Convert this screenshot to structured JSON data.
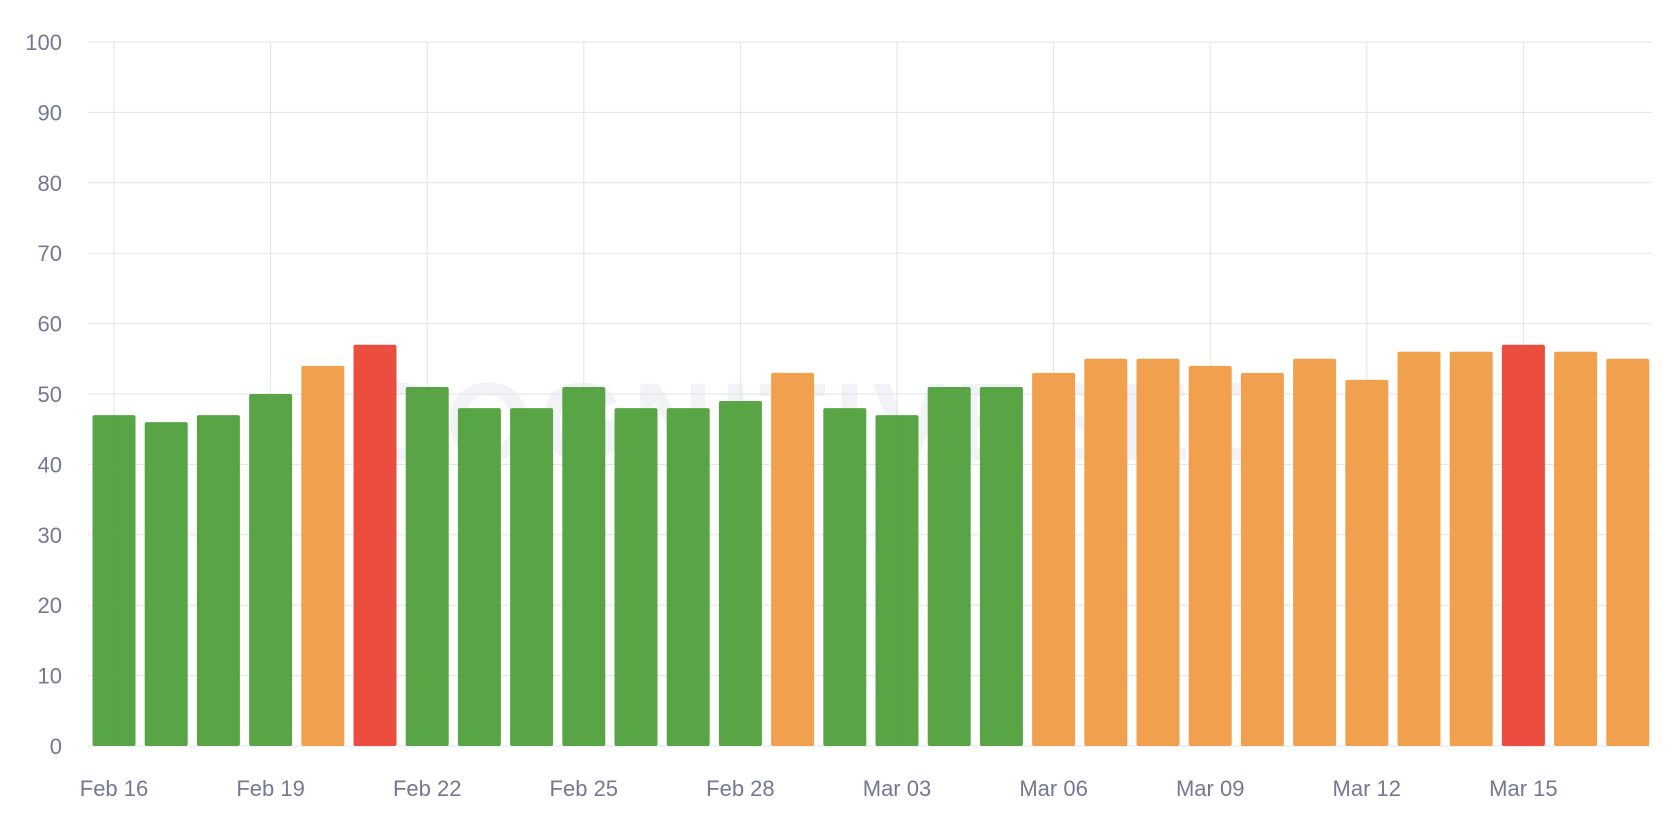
{
  "watermark": "COGNITIVESEO",
  "colors": {
    "good": "#54a23f",
    "medium": "#f19e48",
    "bad": "#ea4838",
    "grid": "#e2e3e8",
    "tick_text": "#757893"
  },
  "chart_data": {
    "type": "bar",
    "title": "",
    "xlabel": "",
    "ylabel": "",
    "ylim": [
      0,
      100
    ],
    "yticks": [
      0,
      10,
      20,
      30,
      40,
      50,
      60,
      70,
      80,
      90,
      100
    ],
    "grid": true,
    "legend": "none",
    "categories": [
      "Feb 16",
      "Feb 17",
      "Feb 18",
      "Feb 19",
      "Feb 20",
      "Feb 21",
      "Feb 22",
      "Feb 23",
      "Feb 24",
      "Feb 25",
      "Feb 26",
      "Feb 27",
      "Feb 28",
      "Mar 01",
      "Mar 02",
      "Mar 03",
      "Mar 04",
      "Mar 05",
      "Mar 06",
      "Mar 07",
      "Mar 08",
      "Mar 09",
      "Mar 10",
      "Mar 11",
      "Mar 12",
      "Mar 13",
      "Mar 14",
      "Mar 15",
      "Mar 16",
      "Mar 17"
    ],
    "x_tick_labels": [
      "Feb 16",
      "Feb 19",
      "Feb 22",
      "Feb 25",
      "Feb 28",
      "Mar 03",
      "Mar 06",
      "Mar 09",
      "Mar 12",
      "Mar 15"
    ],
    "values": [
      47,
      46,
      47,
      50,
      54,
      57,
      51,
      48,
      48,
      51,
      48,
      48,
      49,
      53,
      48,
      47,
      51,
      51,
      53,
      55,
      55,
      54,
      53,
      55,
      52,
      56,
      56,
      57,
      56,
      55
    ],
    "value_status": [
      "good",
      "good",
      "good",
      "good",
      "medium",
      "bad",
      "good",
      "good",
      "good",
      "good",
      "good",
      "good",
      "good",
      "medium",
      "good",
      "good",
      "good",
      "good",
      "medium",
      "medium",
      "medium",
      "medium",
      "medium",
      "medium",
      "medium",
      "medium",
      "medium",
      "bad",
      "medium",
      "medium"
    ]
  }
}
